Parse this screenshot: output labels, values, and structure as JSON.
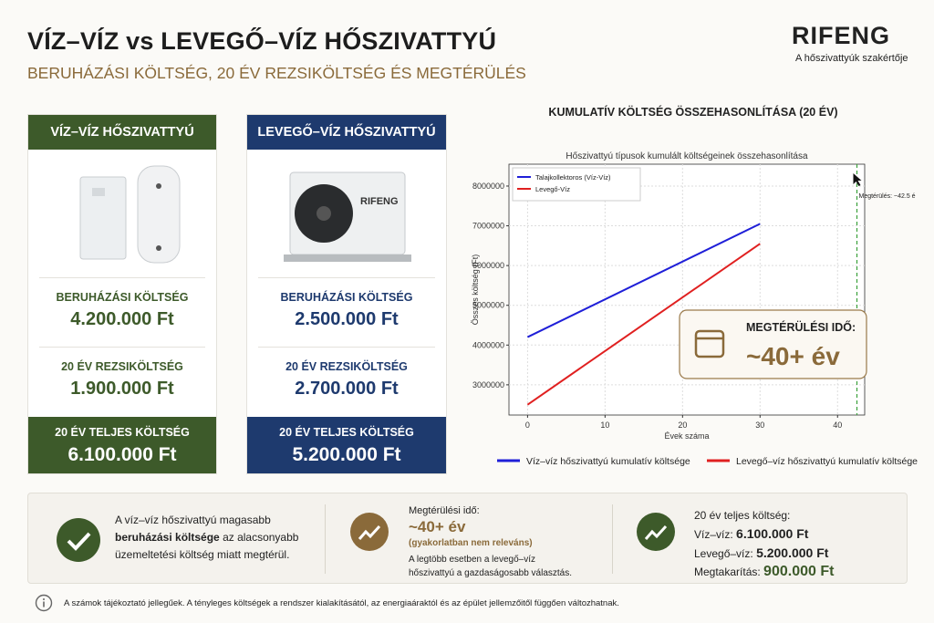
{
  "header": {
    "title": "VÍZ–VÍZ vs LEVEGŐ–VÍZ HŐSZIVATTYÚ",
    "subtitle": "BERUHÁZÁSI KÖLTSÉG, 20 ÉV REZSIKÖLTSÉG ÉS MEGTÉRÜLÉS"
  },
  "logo": {
    "name": "RIFENG",
    "tagline": "A hőszivattyúk szakértője"
  },
  "cards": [
    {
      "title": "VÍZ–VÍZ HŐSZIVATTYÚ",
      "rows": [
        {
          "label": "BERUHÁZÁSI KÖLTSÉG",
          "value": "4.200.000 Ft"
        },
        {
          "label": "20 ÉV REZSIKÖLTSÉG",
          "value": "1.900.000 Ft"
        }
      ],
      "total": {
        "label": "20 ÉV TELJES KÖLTSÉG",
        "value": "6.100.000 Ft"
      }
    },
    {
      "title": "LEVEGŐ–VÍZ HŐSZIVATTYÚ",
      "rows": [
        {
          "label": "BERUHÁZÁSI KÖLTSÉG",
          "value": "2.500.000 Ft"
        },
        {
          "label": "20 ÉV REZSIKÖLTSÉG",
          "value": "2.700.000 Ft"
        }
      ],
      "total": {
        "label": "20 ÉV TELJES KÖLTSÉG",
        "value": "5.200.000 Ft"
      }
    }
  ],
  "chart_data": {
    "type": "line",
    "section_title": "KUMULATÍV KÖLTSÉG ÖSSZEHASONLÍTÁSA (20 ÉV)",
    "title": "Hőszivattyú típusok kumulált költségeinek összehasonlítása",
    "xlabel": "Évek száma",
    "ylabel": "Összes költség (Ft)",
    "x": [
      0,
      30
    ],
    "series": [
      {
        "name": "Talajkollektoros (Víz-Víz)",
        "color": "#1f1fd8",
        "values": [
          4200000,
          7050000
        ]
      },
      {
        "name": "Levegő-Víz",
        "color": "#e02020",
        "values": [
          2500000,
          6550000
        ]
      }
    ],
    "xlim": [
      -2.4,
      43.5
    ],
    "ylim": [
      2240000,
      8550000
    ],
    "xticks": [
      0,
      10,
      20,
      30,
      40
    ],
    "yticks": [
      3000000,
      4000000,
      5000000,
      6000000,
      7000000,
      8000000
    ],
    "grid": true,
    "legend": "upper left",
    "vline": {
      "x": 42.5,
      "color": "#3aa03a",
      "label": "Megtérülés: ~42.5 é"
    },
    "badge": {
      "label": "MEGTÉRÜLÉSI IDŐ:",
      "value": "~40+ év"
    },
    "outer_legend": [
      "Víz–víz hőszivattyú kumulatív költsége",
      "Levegő–víz hőszivattyú kumulatív költsége"
    ]
  },
  "summary": [
    {
      "parts": [
        "A víz–víz hőszivattyú magasabb",
        "beruházási költsége",
        "az alacsonyabb",
        "üzemeltetési költség miatt megtérül."
      ]
    },
    {
      "label": "Megtérülési idő:",
      "value": "~40+ év",
      "note": "(gyakorlatban nem releváns)",
      "text": [
        "A legtöbb esetben a levegő–víz",
        "hőszivattyú a gazdaságosabb választás."
      ]
    },
    {
      "label": "20 év teljes költség:",
      "rows": [
        {
          "label": "Víz–víz:",
          "value": "6.100.000 Ft"
        },
        {
          "label": "Levegő–víz:",
          "value": "5.200.000 Ft"
        },
        {
          "label": "Megtakarítás:",
          "value": "900.000 Ft"
        }
      ]
    }
  ],
  "footnote": "A számok tájékoztató jellegűek. A tényleges költségek a rendszer kialakításától, az energiaáraktól és az épület jellemzőitől függően változhatnak."
}
